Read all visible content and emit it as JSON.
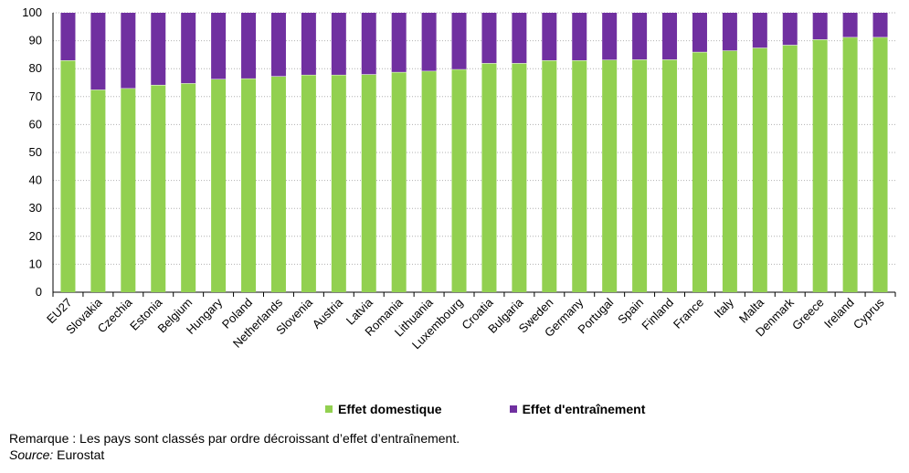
{
  "chart_data": {
    "type": "bar",
    "stacked": true,
    "categories": [
      "EU27",
      "Slovakia",
      "Czechia",
      "Estonia",
      "Belgium",
      "Hungary",
      "Poland",
      "Netherlands",
      "Slovenia",
      "Austria",
      "Latvia",
      "Romania",
      "Lithuania",
      "Luxembourg",
      "Croatia",
      "Bulgaria",
      "Sweden",
      "Germany",
      "Portugal",
      "Spain",
      "Finland",
      "France",
      "Italy",
      "Malta",
      "Denmark",
      "Greece",
      "Ireland",
      "Cyprus"
    ],
    "series": [
      {
        "name": "Effet domestique",
        "color": "#92d050",
        "values": [
          83.0,
          72.5,
          73.0,
          74.2,
          74.8,
          76.3,
          76.5,
          77.3,
          77.8,
          77.8,
          78.0,
          78.8,
          79.2,
          79.8,
          82.0,
          82.0,
          83.0,
          83.0,
          83.2,
          83.3,
          83.3,
          86.0,
          86.5,
          87.5,
          88.5,
          90.5,
          91.3,
          91.3
        ]
      },
      {
        "name": "Effet d'entraînement",
        "color": "#7030a0",
        "values": [
          17.0,
          27.5,
          27.0,
          25.8,
          25.2,
          23.7,
          23.5,
          22.7,
          22.2,
          22.2,
          22.0,
          21.2,
          20.8,
          20.2,
          18.0,
          18.0,
          17.0,
          17.0,
          16.8,
          16.7,
          16.7,
          14.0,
          13.5,
          12.5,
          11.5,
          9.5,
          8.7,
          8.7
        ]
      }
    ],
    "ylim": [
      0,
      100
    ],
    "yticks": [
      0,
      10,
      20,
      30,
      40,
      50,
      60,
      70,
      80,
      90,
      100
    ],
    "grid": true,
    "legend": "bottom",
    "xlabel": "",
    "ylabel": ""
  },
  "legend": {
    "items": [
      {
        "label": "Effet domestique",
        "color": "#92d050"
      },
      {
        "label": "Effet d'entraînement",
        "color": "#7030a0"
      }
    ]
  },
  "note": {
    "remark": "Remarque : Les pays sont classés par ordre décroissant d’effet d’entraînement.",
    "source_label": "Source:",
    "source_value": " Eurostat"
  }
}
